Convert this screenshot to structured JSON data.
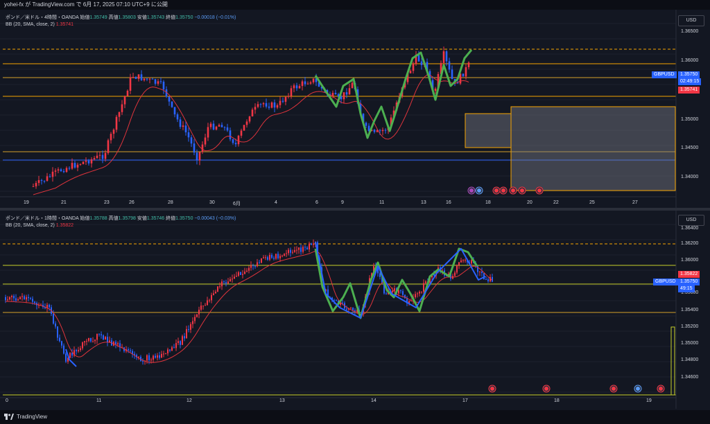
{
  "header": {
    "share_text": "yohei-fx が TradingView.com で 6月 17, 2025 07:10 UTC+9 に公開"
  },
  "colors": {
    "bull": "#f23645",
    "bear": "#2962ff",
    "level": "#f7a600",
    "mid": "#d4a02a",
    "green_line": "#4caf50",
    "bb_basis": "#e0343c",
    "blue_line": "#2962ff"
  },
  "top": {
    "symbol": "ポンド／米ドル・4時間・OANDA",
    "open_label": "始値",
    "open": "1.35749",
    "high_label": "高値",
    "high": "1.35803",
    "low_label": "安値",
    "low": "1.35743",
    "close_label": "終値",
    "close": "1.35750",
    "change": "−0.00018 (−0.01%)",
    "bb_label": "BB (20, SMA, close, 2)",
    "bb_value": "1.35741",
    "currency": "USD",
    "price_labels": [
      "1.36500",
      "1.36000",
      "1.35500",
      "1.35000",
      "1.34500",
      "1.34000"
    ],
    "ticker": "GBPUSD",
    "last_price": "1.35750",
    "countdown": "02:49:15",
    "bb_tag": "1.35741",
    "date_labels": [
      "19",
      "21",
      "23",
      "26",
      "28",
      "30",
      "6月",
      "4",
      "6",
      "9",
      "11",
      "13",
      "16",
      "18",
      "20",
      "22",
      "25",
      "27"
    ]
  },
  "bottom": {
    "symbol": "ポンド／米ドル・1時間・OANDA",
    "open_label": "始値",
    "open": "1.35788",
    "high_label": "高値",
    "high": "1.35798",
    "low_label": "安値",
    "low": "1.35746",
    "close_label": "終値",
    "close": "1.35750",
    "change": "−0.00043 (−0.03%)",
    "bb_label": "BB (20, SMA, close, 2)",
    "bb_value": "1.35822",
    "currency": "USD",
    "price_labels": [
      "1.36400",
      "1.36200",
      "1.36000",
      "1.35800",
      "1.35600",
      "1.35400",
      "1.35200",
      "1.35000",
      "1.34800",
      "1.34600"
    ],
    "ticker": "GBPUSD",
    "last_price": "1.35750",
    "countdown": "49:15",
    "bb_tag": "1.35822",
    "date_labels": [
      "0",
      "11",
      "12",
      "13",
      "14",
      "17",
      "18",
      "19"
    ]
  },
  "footer": {
    "brand": "TradingView"
  }
}
